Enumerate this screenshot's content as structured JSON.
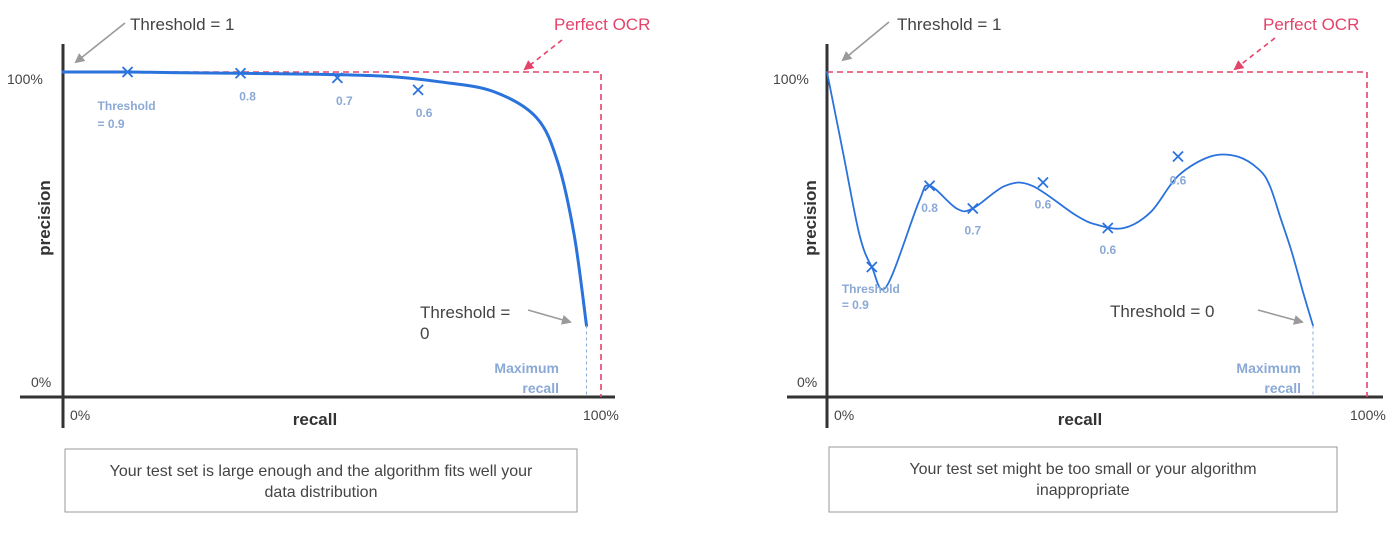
{
  "colors": {
    "axis": "#333333",
    "curve": "#2a72dc",
    "marker": "#2a72dc",
    "marker_label": "#8aa9d6",
    "perfect": "#e4436a",
    "arrow": "#9a9a9a",
    "text": "#444444",
    "box_border": "#999999"
  },
  "chart_data": [
    {
      "type": "line",
      "xlabel": "recall",
      "ylabel": "precision",
      "x_tick_min": "0%",
      "x_tick_max": "100%",
      "y_tick_min": "0%",
      "y_tick_max": "100%",
      "xlim": [
        0,
        100
      ],
      "ylim": [
        0,
        100
      ],
      "series": [
        {
          "x": [
            0,
            12,
            20,
            33,
            47,
            60,
            70,
            80,
            88,
            92,
            95,
            97.3
          ],
          "y": [
            100,
            100,
            99.8,
            99.6,
            99.3,
            98.7,
            97,
            94,
            86,
            72,
            50,
            22
          ]
        }
      ],
      "markers": [
        {
          "x": 12,
          "y": 100,
          "label": [
            "Threshold",
            "= 0.9"
          ]
        },
        {
          "x": 33,
          "y": 99.6,
          "label": [
            "0.8"
          ]
        },
        {
          "x": 51,
          "y": 98.2,
          "label": [
            "0.7"
          ]
        },
        {
          "x": 66,
          "y": 94.5,
          "label": [
            "0.6"
          ]
        }
      ],
      "perfect": {
        "label": "Perfect OCR",
        "x": 100,
        "y": 100
      },
      "threshold_1": "Threshold = 1",
      "threshold_0": [
        "Threshold =",
        "0"
      ],
      "max_recall": [
        "Maximum",
        "recall"
      ],
      "caption": [
        "Your test set is large enough and the algorithm fits well your",
        "data distribution"
      ]
    },
    {
      "type": "line",
      "xlabel": "recall",
      "ylabel": "precision",
      "x_tick_min": "0%",
      "x_tick_max": "100%",
      "y_tick_min": "0%",
      "y_tick_max": "100%",
      "xlim": [
        0,
        100
      ],
      "ylim": [
        0,
        100
      ],
      "series": [
        {
          "x": [
            0,
            3,
            6,
            8.3,
            11,
            17,
            19,
            24,
            27,
            33,
            38,
            46,
            50,
            55,
            60,
            65,
            71,
            76,
            80,
            82,
            84,
            86,
            88.2,
            90
          ],
          "y": [
            100,
            75,
            50,
            40,
            34,
            60,
            65,
            58,
            58,
            65,
            65,
            56,
            53,
            52,
            57,
            68,
            74,
            74,
            70,
            65,
            55,
            45,
            32,
            22
          ]
        }
      ],
      "markers": [
        {
          "x": 8.3,
          "y": 40,
          "label": [
            "Threshold",
            "= 0.9"
          ]
        },
        {
          "x": 19,
          "y": 65,
          "label": [
            "0.8"
          ]
        },
        {
          "x": 27,
          "y": 58,
          "label": [
            "0.7"
          ]
        },
        {
          "x": 40,
          "y": 66,
          "label": [
            "0.6"
          ]
        },
        {
          "x": 52,
          "y": 52,
          "label": [
            "0.6"
          ]
        },
        {
          "x": 65,
          "y": 74,
          "label": [
            "0.6"
          ]
        }
      ],
      "perfect": {
        "label": "Perfect OCR",
        "x": 100,
        "y": 100
      },
      "threshold_1": "Threshold = 1",
      "threshold_0": [
        "Threshold = 0"
      ],
      "max_recall": [
        "Maximum",
        "recall"
      ],
      "caption": [
        "Your test set might be too small or your algorithm",
        "inappropriate"
      ]
    }
  ]
}
